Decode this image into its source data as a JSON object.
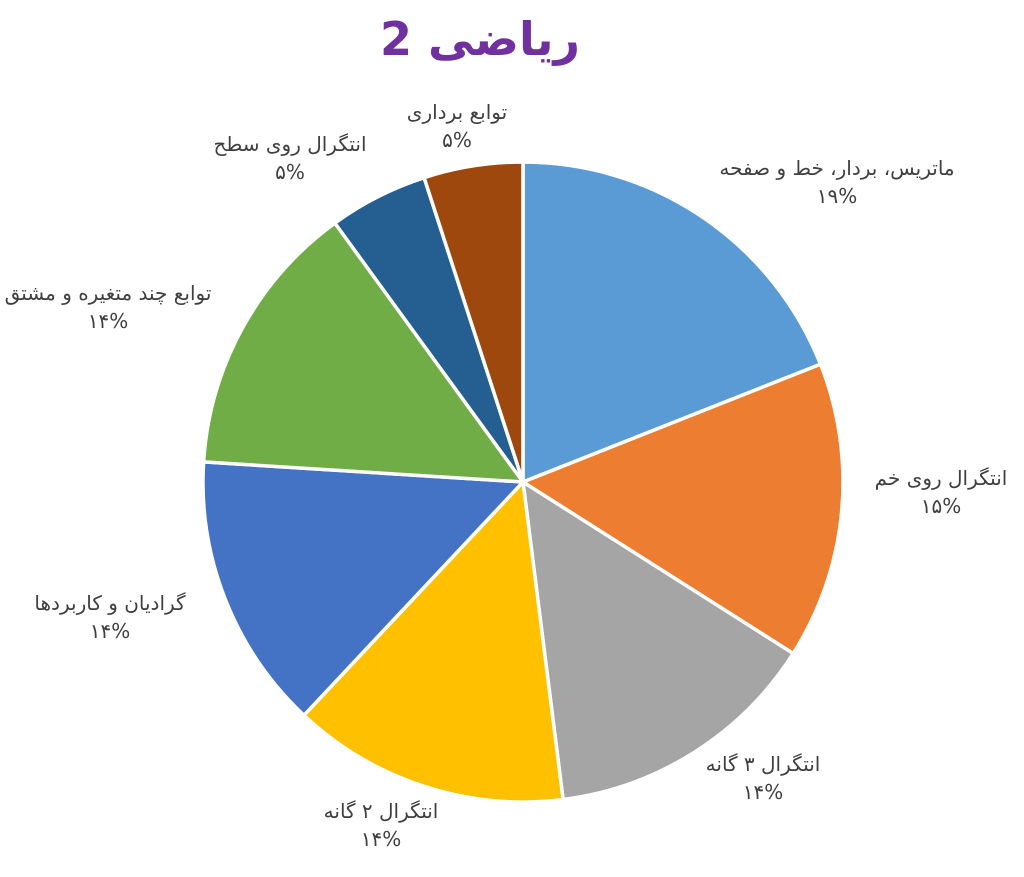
{
  "title": {
    "text": "ریاضی 2",
    "color": "#7030A0"
  },
  "colors": {
    "background": "#FFFFFF",
    "label_text": "#404040",
    "slice_border": "#FFFFFF"
  },
  "chart_data": {
    "type": "pie",
    "title": "ریاضی 2",
    "direction": "clockwise",
    "start_angle_deg_from_top": 0,
    "legend_position": "none",
    "data_labels": "outside-end",
    "slices": [
      {
        "label": "ماتریس، بردار، خط و صفحه",
        "value": 19,
        "pct_label": "۱۹%",
        "color": "#5B9BD5"
      },
      {
        "label": "انتگرال روی خم",
        "value": 15,
        "pct_label": "۱۵%",
        "color": "#ED7D31"
      },
      {
        "label": "انتگرال ۳ گانه",
        "value": 14,
        "pct_label": "۱۴%",
        "color": "#A5A5A5"
      },
      {
        "label": "انتگرال ۲ گانه",
        "value": 14,
        "pct_label": "۱۴%",
        "color": "#FFC000"
      },
      {
        "label": "گرادیان و کاربردها",
        "value": 14,
        "pct_label": "۱۴%",
        "color": "#4472C4"
      },
      {
        "label": "توابع چند متغیره و مشتق",
        "value": 14,
        "pct_label": "۱۴%",
        "color": "#70AD47"
      },
      {
        "label": "انتگرال روی سطح",
        "value": 5,
        "pct_label": "۵%",
        "color": "#255E91"
      },
      {
        "label": "توابع برداری",
        "value": 5,
        "pct_label": "۵%",
        "color": "#9E480E"
      }
    ]
  }
}
